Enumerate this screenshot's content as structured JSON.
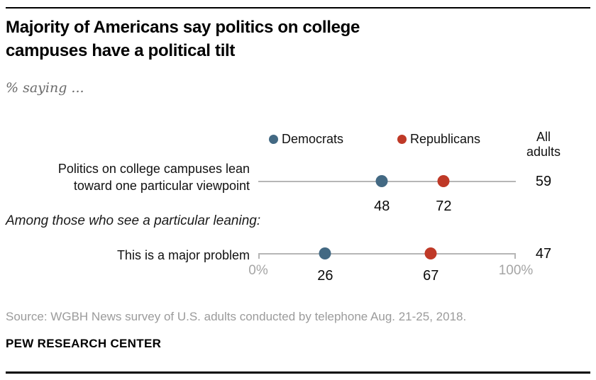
{
  "header": {
    "title": "Majority of Americans say politics on college campuses have a political tilt",
    "subtitle": "% saying ..."
  },
  "legend": {
    "democrats_label": "Democrats",
    "republicans_label": "Republicans",
    "all_adults_line1": "All",
    "all_adults_line2": "adults"
  },
  "colors": {
    "democrat": "#436983",
    "republican": "#bf3927",
    "axis_line": "#b6b6b6"
  },
  "chart_data": {
    "type": "scatter",
    "title": "Majority of Americans say politics on college campuses have a political tilt",
    "subtitle": "% saying ...",
    "x_axis": {
      "min": 0,
      "max": 100,
      "tick_labels": [
        "0%",
        "100%"
      ],
      "grid": false
    },
    "legend_position": "top",
    "series": [
      {
        "name": "Democrats",
        "color": "#436983",
        "values": [
          48,
          26
        ]
      },
      {
        "name": "Republicans",
        "color": "#bf3927",
        "values": [
          72,
          67
        ]
      },
      {
        "name": "All adults",
        "values": [
          59,
          47
        ]
      }
    ],
    "section_note": "Among those who see a particular leaning:",
    "rows": [
      {
        "label": "Politics on college campuses lean toward one particular viewpoint",
        "label_line1": "Politics on college campuses lean",
        "label_line2": "toward one particular viewpoint",
        "democrats": 48,
        "republicans": 72,
        "all_adults": 59
      },
      {
        "label": "This is a major problem",
        "democrats": 26,
        "republicans": 67,
        "all_adults": 47
      }
    ],
    "axis_tick_0": "0%",
    "axis_tick_100": "100%"
  },
  "footer": {
    "source": "Source: WGBH News survey of U.S. adults conducted by telephone Aug. 21-25, 2018.",
    "brand": "PEW RESEARCH CENTER"
  }
}
